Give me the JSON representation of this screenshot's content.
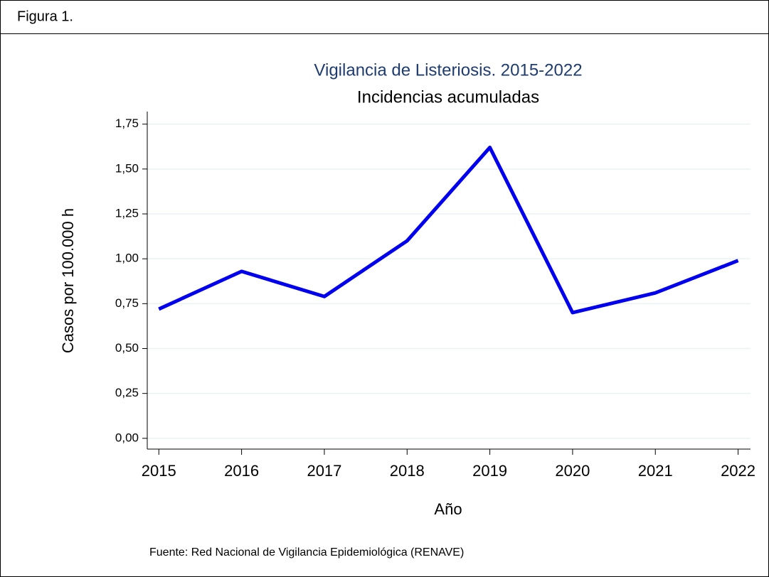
{
  "header": "Figura 1.",
  "chart_data": {
    "type": "line",
    "title": "Vigilancia de Listeriosis. 2015-2022",
    "subtitle": "Incidencias acumuladas",
    "x_label": "Año",
    "y_label": "Casos por 100.000 h",
    "source": "Fuente: Red Nacional de Vigilancia Epidemiológica (RENAVE)",
    "x": [
      2015,
      2016,
      2017,
      2018,
      2019,
      2020,
      2021,
      2022
    ],
    "series": [
      {
        "color": "#0000ee",
        "values": [
          0.72,
          0.93,
          0.79,
          1.1,
          1.62,
          0.7,
          0.81,
          0.99
        ]
      }
    ],
    "xlim": [
      2014.86,
      2022.15
    ],
    "xticks": [
      2015,
      2016,
      2017,
      2018,
      2019,
      2020,
      2021,
      2022
    ],
    "ylim": [
      -0.06,
      1.82
    ],
    "yticks": [
      {
        "value": 0,
        "label": "0,00"
      },
      {
        "value": 0.25,
        "label": "0,25"
      },
      {
        "value": 0.5,
        "label": "0,50"
      },
      {
        "value": 0.75,
        "label": "0,75"
      },
      {
        "value": 1,
        "label": "1,00"
      },
      {
        "value": 1.25,
        "label": "1,25"
      },
      {
        "value": 1.5,
        "label": "1,50"
      },
      {
        "value": 1.75,
        "label": "1,75"
      }
    ],
    "grid": true
  }
}
